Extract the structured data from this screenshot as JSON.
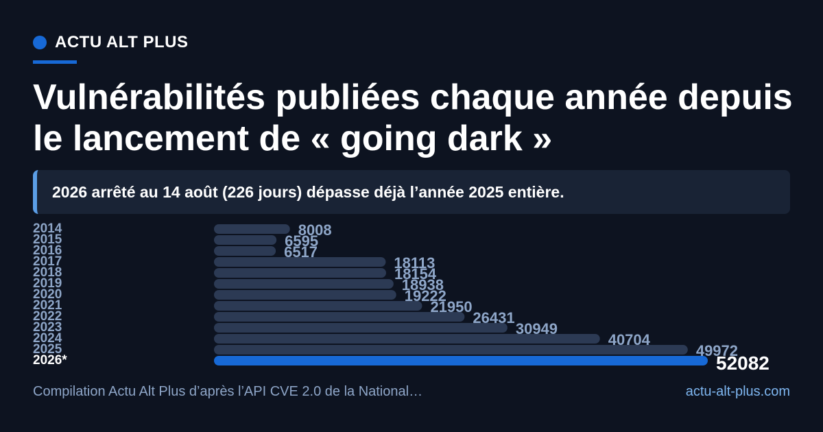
{
  "brand": {
    "name": "ACTU ALT PLUS"
  },
  "title": "Vulnérabilités publiées chaque année depuis le lancement de « going dark »",
  "callout": "2026 arrêté au 14 août (226 jours) dépasse déjà l’année 2025 entière.",
  "footer": {
    "source": "Compilation Actu Alt Plus d’après l’API CVE 2.0 de la National…",
    "url": "actu-alt-plus.com"
  },
  "colors": {
    "background": "#0d1320",
    "accent": "#1769d6",
    "bar": "#2c3a54",
    "muted_text": "#8ea6c8"
  },
  "chart_data": {
    "type": "bar",
    "orientation": "horizontal",
    "categories": [
      "2014",
      "2015",
      "2016",
      "2017",
      "2018",
      "2019",
      "2020",
      "2021",
      "2022",
      "2023",
      "2024",
      "2025",
      "2026*"
    ],
    "values": [
      8008,
      6595,
      6517,
      18113,
      18154,
      18938,
      19222,
      21950,
      26431,
      30949,
      40704,
      49972,
      52082
    ],
    "highlight": "2026*",
    "title": "",
    "xlabel": "",
    "ylabel": ""
  }
}
